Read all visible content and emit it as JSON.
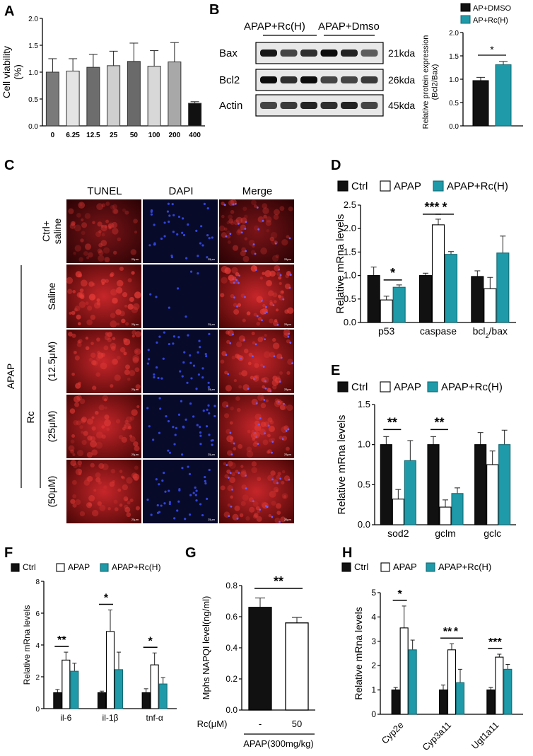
{
  "colors": {
    "black": "#111111",
    "white": "#ffffff",
    "teal": "#1f9aa8",
    "red": "#c8201c",
    "blue": "#3044d8"
  },
  "panels": {
    "A": {
      "letter": "A"
    },
    "B": {
      "letter": "B"
    },
    "C": {
      "letter": "C"
    },
    "D": {
      "letter": "D"
    },
    "E": {
      "letter": "E"
    },
    "F": {
      "letter": "F"
    },
    "G": {
      "letter": "G"
    },
    "H": {
      "letter": "H"
    }
  },
  "blot": {
    "group_labels": [
      "APAP+Rc(H)",
      "APAP+Dmso"
    ],
    "rows": [
      {
        "protein": "Bax",
        "size": "21kda"
      },
      {
        "protein": "Bcl2",
        "size": "26kda"
      },
      {
        "protein": "Actin",
        "size": "45kda"
      }
    ]
  },
  "micro": {
    "col_headers": [
      "TUNEL",
      "DAPI",
      "Merge"
    ],
    "row_labels": [
      "Ctrl+\nsaline",
      "Saline",
      "(12.5μM)",
      "(25μM)",
      "(50μM)"
    ],
    "apap_label": "APAP",
    "rc_label": "Rc",
    "scale_bar": "25μm"
  },
  "chart_data": [
    {
      "panel": "A",
      "type": "bar",
      "ylabel": "Cell viability\n(%)",
      "ylim": [
        0,
        2.0
      ],
      "yticks": [
        "0.0",
        "0.5",
        "1.0",
        "1.5",
        "2.0"
      ],
      "categories": [
        "0",
        "6.25",
        "12.5",
        "25",
        "50",
        "100",
        "200",
        "400"
      ],
      "values": [
        1.0,
        1.02,
        1.09,
        1.12,
        1.2,
        1.11,
        1.19,
        0.42
      ],
      "errors": [
        0.25,
        0.23,
        0.24,
        0.27,
        0.34,
        0.29,
        0.36,
        0.03
      ],
      "fills": [
        "#7a7a7a",
        "#e4e4e4",
        "#6d6d6d",
        "#cfcfcf",
        "#6a6a6a",
        "#d8d8d8",
        "#a8a8a8",
        "#111111"
      ]
    },
    {
      "panel": "B",
      "type": "bar",
      "ylabel": "Relative protein expression\n(Bcl2/Bax)",
      "ylim": [
        0,
        2.0
      ],
      "yticks": [
        "0.0",
        "0.5",
        "1.0",
        "1.5",
        "2.0"
      ],
      "legend": [
        "AP+DMSO",
        "AP+Rc(H)"
      ],
      "values": [
        0.97,
        1.31
      ],
      "errors": [
        0.07,
        0.07
      ],
      "significance": "*"
    },
    {
      "panel": "D",
      "type": "bar",
      "ylabel": "Relative mRna levels",
      "ylim": [
        0,
        2.5
      ],
      "yticks": [
        "0.0",
        "0.5",
        "1.0",
        "1.5",
        "2.0",
        "2.5"
      ],
      "legend": [
        "Ctrl",
        "APAP",
        "APAP+Rc(H)"
      ],
      "categories": [
        "p53",
        "caspase",
        "bcl2/bax"
      ],
      "series": [
        {
          "name": "Ctrl",
          "values": [
            1.0,
            1.0,
            0.98
          ],
          "errors": [
            0.18,
            0.05,
            0.12
          ]
        },
        {
          "name": "APAP",
          "values": [
            0.48,
            2.08,
            0.72
          ],
          "errors": [
            0.08,
            0.12,
            0.24
          ]
        },
        {
          "name": "APAP+Rc(H)",
          "values": [
            0.75,
            1.45,
            1.48
          ],
          "errors": [
            0.05,
            0.06,
            0.36
          ]
        }
      ],
      "sig": [
        {
          "cat": 0,
          "from": 1,
          "to": 2,
          "text": "*"
        },
        {
          "cat": 1,
          "from": 0,
          "to": 1,
          "text": "***"
        },
        {
          "cat": 1,
          "from": 1,
          "to": 2,
          "text": "*"
        }
      ]
    },
    {
      "panel": "E",
      "type": "bar",
      "ylabel": "Relative mRna levels",
      "ylim": [
        0,
        1.5
      ],
      "yticks": [
        "0.0",
        "0.5",
        "1.0",
        "1.5"
      ],
      "legend": [
        "Ctrl",
        "APAP",
        "APAP+Rc(H)"
      ],
      "categories": [
        "sod2",
        "gclm",
        "gclc"
      ],
      "series": [
        {
          "name": "Ctrl",
          "values": [
            1.0,
            1.0,
            1.0
          ],
          "errors": [
            0.1,
            0.1,
            0.15
          ]
        },
        {
          "name": "APAP",
          "values": [
            0.32,
            0.22,
            0.75
          ],
          "errors": [
            0.12,
            0.09,
            0.17
          ]
        },
        {
          "name": "APAP+Rc(H)",
          "values": [
            0.8,
            0.39,
            1.0
          ],
          "errors": [
            0.25,
            0.07,
            0.18
          ]
        }
      ],
      "sig": [
        {
          "cat": 0,
          "from": 0,
          "to": 1,
          "text": "**"
        },
        {
          "cat": 1,
          "from": 0,
          "to": 1,
          "text": "**"
        }
      ]
    },
    {
      "panel": "F",
      "type": "bar",
      "ylabel": "Relative mRna levels",
      "ylim": [
        0,
        8
      ],
      "yticks": [
        "0",
        "2",
        "4",
        "6",
        "8"
      ],
      "legend": [
        "Ctrl",
        "APAP",
        "APAP+Rc(H)"
      ],
      "categories": [
        "il-6",
        "il-1β",
        "tnf-α"
      ],
      "series": [
        {
          "name": "Ctrl",
          "values": [
            1.0,
            1.0,
            1.0
          ],
          "errors": [
            0.2,
            0.1,
            0.25
          ]
        },
        {
          "name": "APAP",
          "values": [
            3.05,
            4.85,
            2.75
          ],
          "errors": [
            0.5,
            1.35,
            0.75
          ]
        },
        {
          "name": "APAP+Rc(H)",
          "values": [
            2.35,
            2.45,
            1.55
          ],
          "errors": [
            0.5,
            1.1,
            0.4
          ]
        }
      ],
      "sig": [
        {
          "cat": 0,
          "from": 0,
          "to": 1,
          "text": "**"
        },
        {
          "cat": 1,
          "from": 0,
          "to": 1,
          "text": "*"
        },
        {
          "cat": 2,
          "from": 0,
          "to": 1,
          "text": "*"
        }
      ]
    },
    {
      "panel": "G",
      "type": "bar",
      "ylabel": "Mphs NAPQI level(ng/ml)",
      "ylim": [
        0,
        0.8
      ],
      "yticks": [
        "0.0",
        "0.2",
        "0.4",
        "0.6",
        "0.8"
      ],
      "categories": [
        "-",
        "50"
      ],
      "xlabel_left": "Rc(μM)",
      "xlabel_bottom": "APAP(300mg/kg)",
      "values": [
        0.66,
        0.56
      ],
      "errors": [
        0.06,
        0.035
      ],
      "significance": "**"
    },
    {
      "panel": "H",
      "type": "bar",
      "ylabel": "Relative mRna levels",
      "ylim": [
        0,
        5
      ],
      "yticks": [
        "0",
        "1",
        "2",
        "3",
        "4",
        "5"
      ],
      "legend": [
        "Ctrl",
        "APAP",
        "APAP+Rc(H)"
      ],
      "categories": [
        "Cyp2e",
        "Cyp3a11",
        "Ugt1a11"
      ],
      "series": [
        {
          "name": "Ctrl",
          "values": [
            1.0,
            1.0,
            1.0
          ],
          "errors": [
            0.1,
            0.2,
            0.1
          ]
        },
        {
          "name": "APAP",
          "values": [
            3.55,
            2.65,
            2.35
          ],
          "errors": [
            0.9,
            0.25,
            0.12
          ]
        },
        {
          "name": "APAP+Rc(H)",
          "values": [
            2.65,
            1.3,
            1.85
          ],
          "errors": [
            0.4,
            0.55,
            0.2
          ]
        }
      ],
      "sig": [
        {
          "cat": 0,
          "from": 0,
          "to": 1,
          "text": "*"
        },
        {
          "cat": 1,
          "from": 0,
          "to": 1,
          "text": "**"
        },
        {
          "cat": 1,
          "from": 1,
          "to": 2,
          "text": "*"
        },
        {
          "cat": 2,
          "from": 0,
          "to": 1,
          "text": "***"
        }
      ]
    }
  ]
}
